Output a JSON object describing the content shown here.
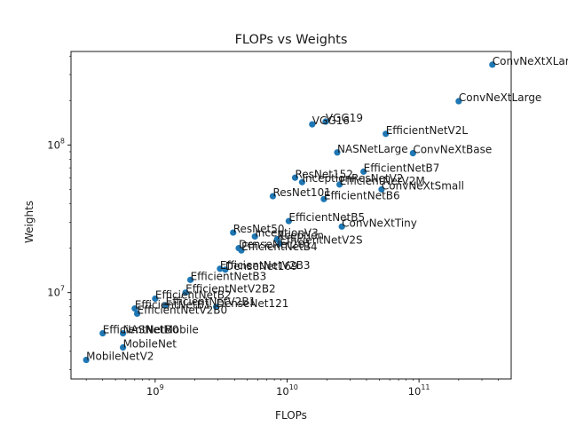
{
  "chart_data": {
    "type": "scatter",
    "title": "FLOPs vs Weights",
    "xlabel": "FLOPs",
    "ylabel": "Weights",
    "xscale": "log",
    "yscale": "log",
    "xlim": [
      230000000.0,
      500000000000.0
    ],
    "ylim": [
      2600000.0,
      430000000.0
    ],
    "x_ticks": [
      {
        "base": "10",
        "exp": "9",
        "value": 1000000000.0
      },
      {
        "base": "10",
        "exp": "10",
        "value": 10000000000.0
      },
      {
        "base": "10",
        "exp": "11",
        "value": 100000000000.0
      }
    ],
    "y_ticks": [
      {
        "base": "10",
        "exp": "7",
        "value": 10000000.0
      },
      {
        "base": "10",
        "exp": "8",
        "value": 100000000.0
      }
    ],
    "grid": false,
    "marker_color": "#1f77b4",
    "points": [
      {
        "label": "ConvNeXtXLarge",
        "x": 360000000000.0,
        "y": 350000000.0
      },
      {
        "label": "ConvNeXtLarge",
        "x": 200000000000.0,
        "y": 198000000.0
      },
      {
        "label": "EfficientNetV2L",
        "x": 56000000000.0,
        "y": 119000000.0
      },
      {
        "label": "VGG19",
        "x": 19600000000.0,
        "y": 144000000.0
      },
      {
        "label": "VGG16",
        "x": 15500000000.0,
        "y": 138000000.0
      },
      {
        "label": "NASNetLarge",
        "x": 24000000000.0,
        "y": 89000000.0
      },
      {
        "label": "ConvNeXtBase",
        "x": 90000000000.0,
        "y": 88000000.0
      },
      {
        "label": "EfficientNetB7",
        "x": 38000000000.0,
        "y": 66000000.0
      },
      {
        "label": "ResNet152",
        "x": 11500000000.0,
        "y": 60000000.0
      },
      {
        "label": "InceptionResNetV2",
        "x": 13000000000.0,
        "y": 56000000.0
      },
      {
        "label": "EfficientNetV2M",
        "x": 25000000000.0,
        "y": 54000000.0
      },
      {
        "label": "ConvNeXtSmall",
        "x": 52000000000.0,
        "y": 50000000.0
      },
      {
        "label": "ResNet101",
        "x": 7800000000.0,
        "y": 45000000.0
      },
      {
        "label": "EfficientNetB6",
        "x": 19000000000.0,
        "y": 43000000.0
      },
      {
        "label": "EfficientNetB5",
        "x": 10300000000.0,
        "y": 30500000.0
      },
      {
        "label": "ConvNeXtTiny",
        "x": 26000000000.0,
        "y": 28000000.0
      },
      {
        "label": "ResNet50",
        "x": 3900000000.0,
        "y": 25500000.0
      },
      {
        "label": "InceptionV3",
        "x": 5700000000.0,
        "y": 24000000.0
      },
      {
        "label": "Xception",
        "x": 8400000000.0,
        "y": 23000000.0
      },
      {
        "label": "EfficientNetV2S",
        "x": 8800000000.0,
        "y": 21500000.0
      },
      {
        "label": "DenseNet201",
        "x": 4300000000.0,
        "y": 20000000.0
      },
      {
        "label": "EfficientNetB4",
        "x": 4500000000.0,
        "y": 19300000.0
      },
      {
        "label": "EfficientNetB3",
        "x": 1850000000.0,
        "y": 12200000.0
      },
      {
        "label": "DenseNet169",
        "x": 3400000000.0,
        "y": 14300000.0
      },
      {
        "label": "EfficientNetV2B3",
        "x": 3100000000.0,
        "y": 14500000.0
      },
      {
        "label": "EfficientNetV2B2",
        "x": 1700000000.0,
        "y": 10000000.0
      },
      {
        "label": "EfficientNetB2",
        "x": 1000000000.0,
        "y": 9100000.0
      },
      {
        "label": "EfficientNetV2B1",
        "x": 1200000000.0,
        "y": 8200000.0
      },
      {
        "label": "DenseNet121",
        "x": 2900000000.0,
        "y": 8000000.0
      },
      {
        "label": "EfficientNetB1",
        "x": 700000000.0,
        "y": 7800000.0
      },
      {
        "label": "EfficientNetV2B0",
        "x": 730000000.0,
        "y": 7200000.0
      },
      {
        "label": "EfficientNetB0",
        "x": 400000000.0,
        "y": 5300000.0
      },
      {
        "label": "NASNetMobile",
        "x": 570000000.0,
        "y": 5300000.0
      },
      {
        "label": "MobileNet",
        "x": 570000000.0,
        "y": 4250000.0
      },
      {
        "label": "MobileNetV2",
        "x": 300000000.0,
        "y": 3500000.0
      }
    ]
  }
}
